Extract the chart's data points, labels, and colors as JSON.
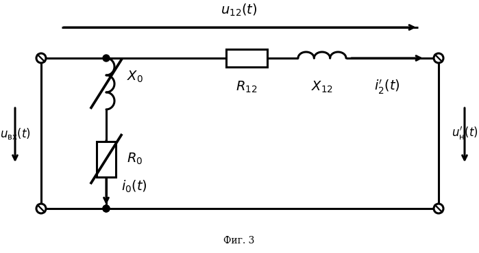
{
  "bg_color": "#ffffff",
  "line_color": "#000000",
  "linewidth": 2.2,
  "fig_width": 6.99,
  "fig_height": 3.7,
  "dpi": 100,
  "label_fig": "Фиг. 3"
}
